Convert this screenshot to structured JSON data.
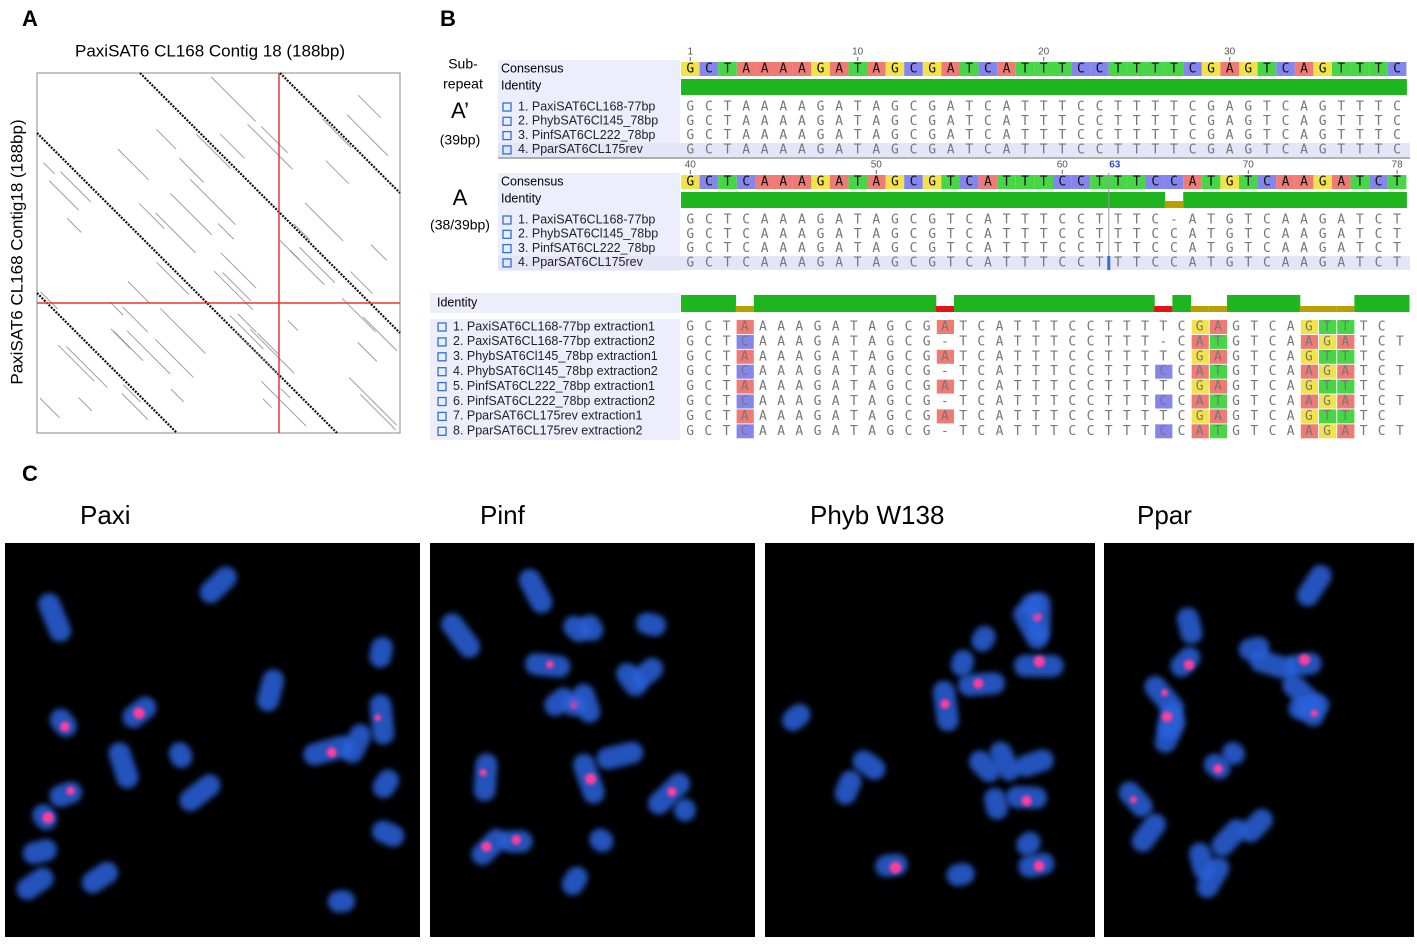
{
  "panel_a": {
    "label": "A",
    "title": "PaxiSAT6 CL168 Contig 18 (188bp)",
    "y_label": "PaxiSAT6 CL168 Contig18 (188bp)"
  },
  "panel_b": {
    "label": "B",
    "sub_repeat": [
      "Sub-",
      "repeat"
    ],
    "blocks": [
      {
        "repeat": "A’",
        "length": "(39bp)",
        "ruler": [
          1,
          10,
          20,
          30
        ],
        "consensus_label": "Consensus",
        "identity_label": "Identity",
        "consensus": "GCTAAAAGATAGCGATCATTTCCTTTTCGAGTCAGTTTC",
        "rows": [
          {
            "name": "1. PaxiSAT6CL168-77bp",
            "sequence": "GCTAAAAGATAGCGATCATTTCCTTTTCGAGTCAGTTTC"
          },
          {
            "name": "2. PhybSAT6Cl145_78bp",
            "sequence": "GCTAAAAGATAGCGATCATTTCCTTTTCGAGTCAGTTTC"
          },
          {
            "name": "3. PinfSAT6CL222_78bp",
            "sequence": "GCTAAAAGATAGCGATCATTTCCTTTTCGAGTCAGTTTC"
          },
          {
            "name": "4. PparSAT6CL175rev",
            "sequence": "GCTAAAAGATAGCGATCATTTCCTTTTCGAGTCAGTTTC"
          }
        ]
      },
      {
        "repeat": "A",
        "length": "(38/39bp)",
        "ruler": [
          40,
          50,
          60,
          70,
          78
        ],
        "cursor": 63,
        "consensus_label": "Consensus",
        "identity_label": "Identity",
        "consensus": "GCTCAAAGATAGCGTCATTTCCTTTCCATGTCAAGATCT",
        "rows": [
          {
            "name": "1. PaxiSAT6CL168-77bp",
            "sequence": "GCTCAAAGATAGCGTCATTTCCTTTC-ATGTCAAGATCT"
          },
          {
            "name": "2. PhybSAT6Cl145_78bp",
            "sequence": "GCTCAAAGATAGCGTCATTTCCTTTCCATGTCAAGATCT"
          },
          {
            "name": "3. PinfSAT6CL222_78bp",
            "sequence": "GCTCAAAGATAGCGTCATTTCCTTTCCATGTCAAGATCT"
          },
          {
            "name": "4. PparSAT6CL175rev",
            "sequence": "GCTCAAAGATAGCGTCATTTCCTTTCCATGTCAAGATCT"
          }
        ]
      }
    ],
    "extractions": {
      "identity_label": "Identity",
      "rows": [
        {
          "name": "1. PaxiSAT6CL168-77bp extraction1",
          "sequence": "GCTAAAAGATAGCGATCATTTCCTTTTCGAGTCAGTTTC"
        },
        {
          "name": "2. PaxiSAT6CL168-77bp extraction2",
          "sequence": "GCTCAAAGATAGCG-TCATTTCCTTT-CATGTCAAGATCT"
        },
        {
          "name": "3. PhybSAT6Cl145_78bp extraction1",
          "sequence": "GCTAAAAGATAGCGATCATTTCCTTTTCGAGTCAGTTTC"
        },
        {
          "name": "4. PhybSAT6Cl145_78bp extraction2",
          "sequence": "GCTCAAAGATAGCG-TCATTTCCTTTCCATGTCAAGATCT"
        },
        {
          "name": "5. PinfSAT6CL222_78bp extraction1",
          "sequence": "GCTAAAAGATAGCGATCATTTCCTTTTCGAGTCAGTTTC"
        },
        {
          "name": "6. PinfSAT6CL222_78bp extraction2",
          "sequence": "GCTCAAAGATAGCG-TCATTTCCTTTCCATGTCAAGATCT"
        },
        {
          "name": "7. PparSAT6CL175rev extraction1",
          "sequence": "GCTAAAAGATAGCGATCATTTCCTTTTCGAGTCAGTTTC"
        },
        {
          "name": "8. PparSAT6CL175rev extraction2",
          "sequence": "GCTCAAAGATAGCG-TCATTTCCTTTCCATGTCAAGATCT"
        }
      ]
    }
  },
  "panel_c": {
    "label": "C",
    "images": [
      {
        "title": "Paxi"
      },
      {
        "title": "Pinf"
      },
      {
        "title": "Phyb W138"
      },
      {
        "title": "Ppar"
      }
    ]
  }
}
